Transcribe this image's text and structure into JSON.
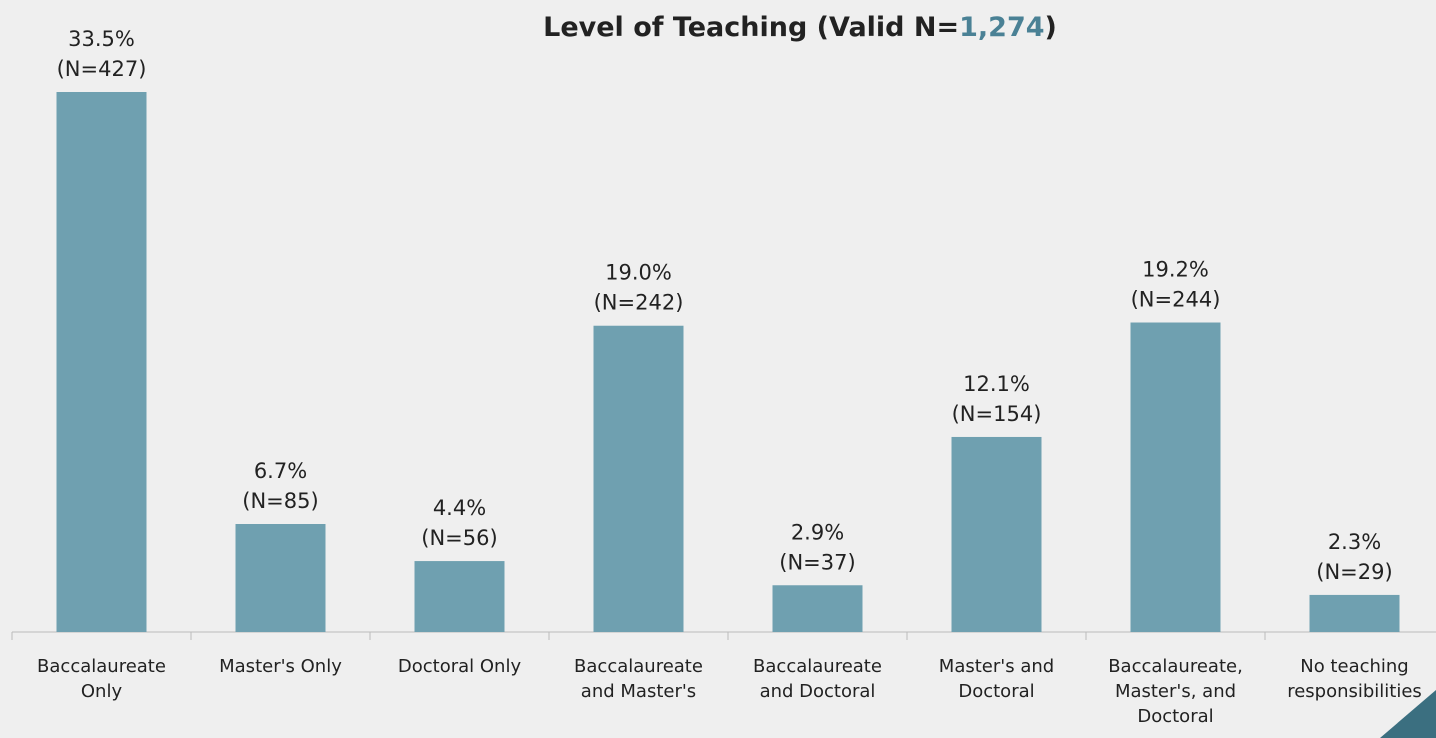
{
  "chart_data": {
    "type": "bar",
    "title": {
      "parts": [
        "Level of Teaching (Valid N=",
        "1,274",
        ")"
      ],
      "highlight": 1,
      "highlight_color": "#4a8195"
    },
    "categories": [
      "Baccalaureate\nOnly",
      "Master's Only",
      "Doctoral Only",
      "Baccalaureate\nand Master's",
      "Baccalaureate\nand Doctoral",
      "Master's and\nDoctoral",
      "Baccalaureate,\nMaster's, and\nDoctoral",
      "No teaching\nresponsibilities"
    ],
    "values": [
      33.5,
      6.7,
      4.4,
      19.0,
      2.9,
      12.1,
      19.2,
      2.3
    ],
    "value_labels": [
      "33.5%\n(N=427)",
      "6.7%\n(N=85)",
      "4.4%\n(N=56)",
      "19.0%\n(N=242)",
      "2.9%\n(N=37)",
      "12.1%\n(N=154)",
      "19.2%\n(N=244)",
      "2.3%\n(N=29)"
    ],
    "color": "#6fa0b0"
  }
}
